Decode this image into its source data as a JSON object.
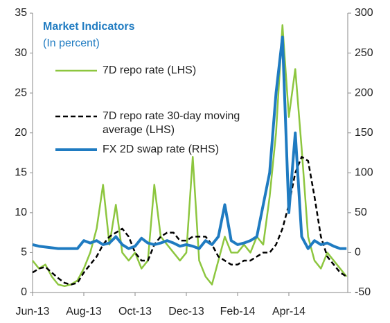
{
  "chart_data": {
    "type": "line",
    "title": "Market Indicators",
    "subtitle": "(In percent)",
    "categories": [
      "Jun-13",
      null,
      null,
      null,
      null,
      null,
      null,
      null,
      "Aug-13",
      null,
      null,
      null,
      null,
      null,
      null,
      null,
      "Oct-13",
      null,
      null,
      null,
      null,
      null,
      null,
      null,
      "Dec-13",
      null,
      null,
      null,
      null,
      null,
      null,
      null,
      "Feb-14",
      null,
      null,
      null,
      null,
      null,
      null,
      null,
      "Apr-14",
      null,
      null,
      null,
      null,
      null,
      null,
      null,
      null,
      null
    ],
    "series": [
      {
        "name": "7D repo rate (LHS)",
        "color": "#8dc63f",
        "width": 2.5,
        "dash": false,
        "axis": "y",
        "values": [
          4,
          3,
          3.5,
          2,
          1,
          0.8,
          1,
          1.5,
          3,
          5,
          8,
          13.5,
          6,
          11,
          5,
          4,
          5,
          3,
          4,
          13.5,
          7,
          6,
          5,
          4,
          5,
          17,
          4,
          2,
          1,
          4,
          7,
          5,
          5,
          6,
          5,
          7,
          6,
          12,
          20,
          33.5,
          22,
          28,
          18,
          7,
          4,
          3,
          5,
          4,
          3,
          2
        ]
      },
      {
        "name": "7D repo rate 30-day moving average (LHS)",
        "color": "#000000",
        "width": 2.5,
        "dash": true,
        "axis": "y",
        "values": [
          2.5,
          3,
          3.2,
          2.5,
          1.8,
          1.2,
          1,
          1.2,
          2.5,
          3.5,
          4.5,
          6,
          7,
          7.5,
          8,
          7,
          5,
          4,
          4,
          6,
          7,
          7.5,
          7.5,
          6.5,
          6.5,
          7,
          7,
          7,
          6,
          4.5,
          4,
          3.5,
          3.5,
          4,
          4,
          4.5,
          5,
          5,
          6,
          8,
          11,
          15,
          17,
          16.5,
          12,
          7,
          4.5,
          3.5,
          2.5,
          2
        ]
      },
      {
        "name": "FX 2D swap rate (RHS)",
        "color": "#1f7bc1",
        "width": 4,
        "dash": false,
        "axis": "y2",
        "values": [
          10,
          8,
          7,
          6,
          5,
          5,
          5,
          5,
          15,
          12,
          15,
          10,
          12,
          20,
          10,
          5,
          8,
          18,
          12,
          10,
          12,
          15,
          12,
          8,
          10,
          8,
          5,
          15,
          10,
          20,
          60,
          15,
          10,
          12,
          15,
          20,
          60,
          100,
          200,
          270,
          50,
          150,
          20,
          5,
          15,
          10,
          12,
          8,
          5,
          5
        ]
      }
    ],
    "ylim": [
      0,
      35
    ],
    "yticks": [
      0,
      5,
      10,
      15,
      20,
      25,
      30,
      35
    ],
    "y2lim": [
      -50,
      300
    ],
    "y2ticks": [
      -50,
      0,
      50,
      100,
      150,
      200,
      250,
      300
    ],
    "grid": false
  }
}
